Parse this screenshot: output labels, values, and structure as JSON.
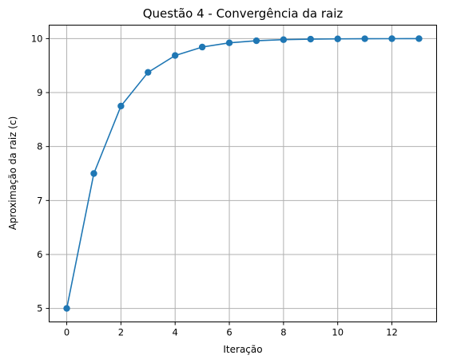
{
  "chart_data": {
    "type": "line",
    "title": "Questão 4 - Convergência da raiz",
    "xlabel": "Iteração",
    "ylabel": "Aproximação da raiz (c)",
    "xlim": [
      -0.65,
      13.65
    ],
    "ylim": [
      4.75,
      10.25
    ],
    "xticks": [
      0,
      2,
      4,
      6,
      8,
      10,
      12
    ],
    "yticks": [
      5,
      6,
      7,
      8,
      9,
      10
    ],
    "grid": true,
    "series": [
      {
        "color": "#1f77b4",
        "marker": "circle",
        "x": [
          0,
          1,
          2,
          3,
          4,
          5,
          6,
          7,
          8,
          9,
          10,
          11,
          12,
          13
        ],
        "y": [
          5,
          7.5,
          8.75,
          9.375,
          9.6875,
          9.84375,
          9.921875,
          9.9609375,
          9.98046875,
          9.990234375,
          9.9951171875,
          9.99755859375,
          9.998779296875,
          9.9993896484375
        ]
      }
    ]
  }
}
